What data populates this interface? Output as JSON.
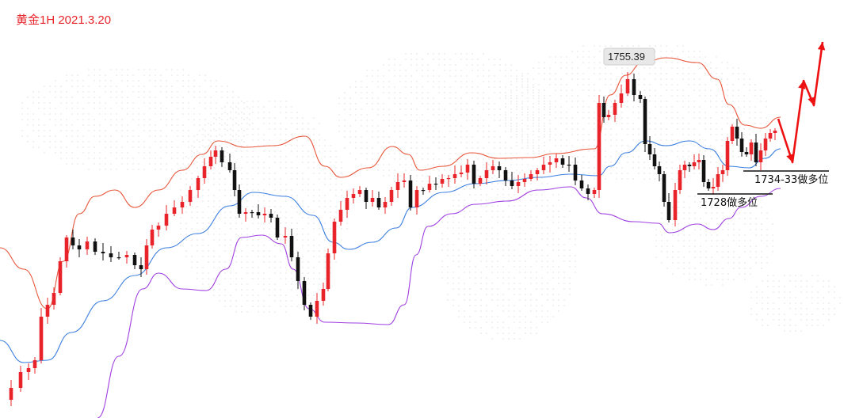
{
  "header": {
    "title": "黄金1H 2021.3.20",
    "title_color": "#e8242a"
  },
  "chart_data": {
    "type": "candlestick",
    "instrument": "黄金",
    "timeframe": "1H",
    "title": "黄金1H 2021.3.20",
    "bull_color": "#e8242a",
    "bear_color": "#111111",
    "bands": {
      "upper_color": "#e8553a",
      "middle_color": "#3c7fe0",
      "lower_color": "#a040e0"
    },
    "annotations": {
      "peak_label": "1755.39",
      "support_high": "1734-33做多位",
      "support_low": "1728做多位"
    },
    "projection": {
      "color": "#ee1111",
      "description": "path"
    }
  }
}
